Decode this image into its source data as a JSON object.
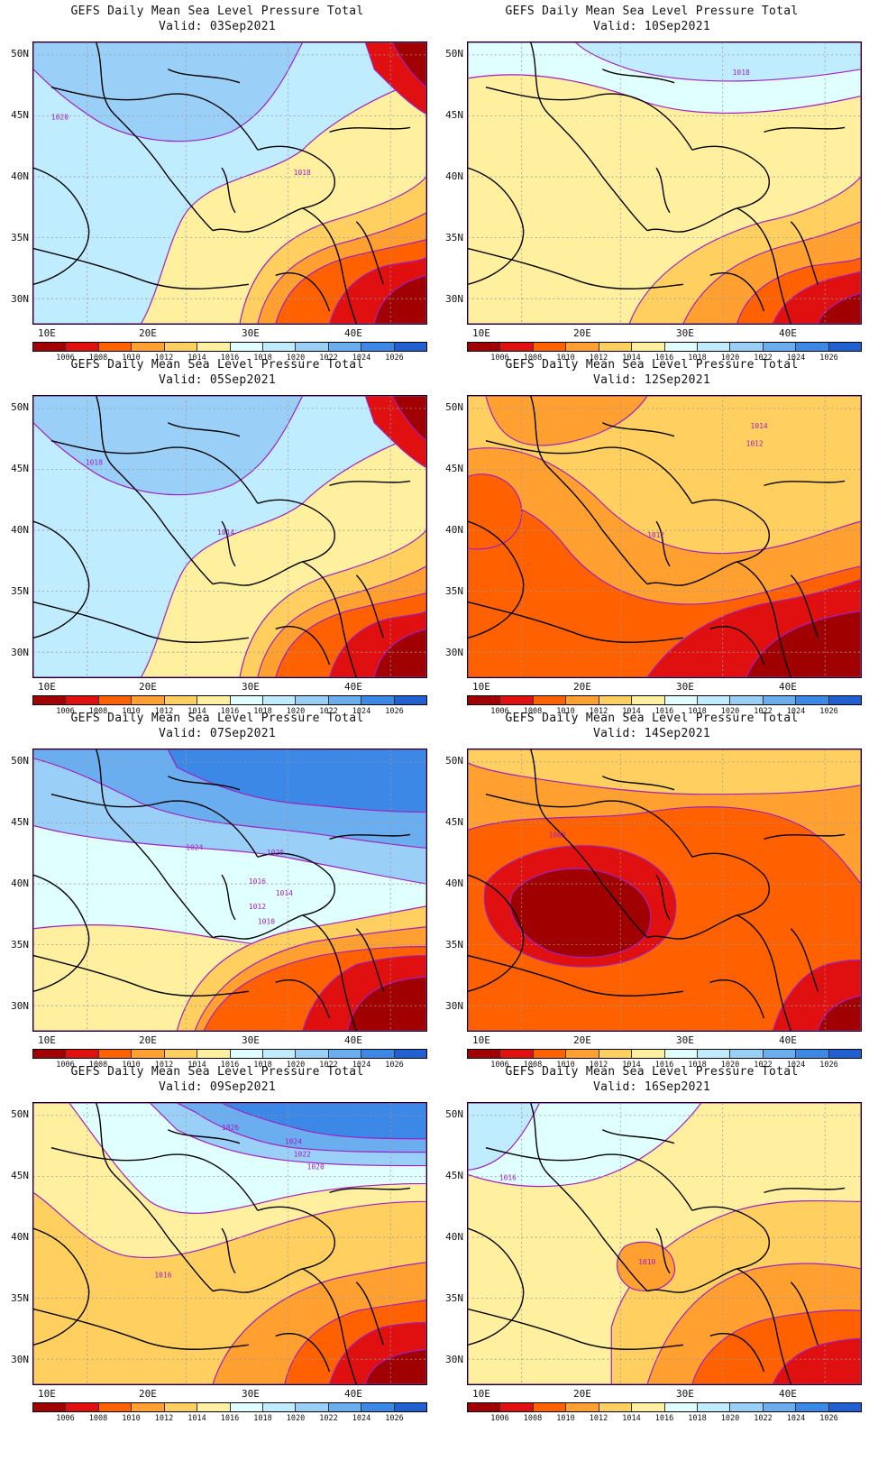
{
  "title": "GEFS Daily Mean Sea Level Pressure Total",
  "valid_prefix": "Valid: ",
  "lat_labels": [
    "50N",
    "45N",
    "40N",
    "35N",
    "30N"
  ],
  "lon_labels": [
    "10E",
    "20E",
    "30E",
    "40E"
  ],
  "colorbar": {
    "labels": [
      "1006",
      "1008",
      "1010",
      "1012",
      "1014",
      "1016",
      "1018",
      "1020",
      "1022",
      "1024",
      "1026"
    ],
    "colors": [
      "#a00000",
      "#e01010",
      "#ff6000",
      "#ffa030",
      "#ffd060",
      "#fff0a0",
      "#e0ffff",
      "#c0ecff",
      "#9ad0f8",
      "#6aaef0",
      "#3c88e6",
      "#2060d0"
    ]
  },
  "panels": [
    {
      "valid": "03Sep2021",
      "contour_labels": [
        "1020",
        "1018"
      ],
      "pattern": "north_blue_se_red"
    },
    {
      "valid": "10Sep2021",
      "contour_labels": [
        "1018"
      ],
      "pattern": "mostly_yellow_se_red"
    },
    {
      "valid": "05Sep2021",
      "contour_labels": [
        "1018",
        "1014"
      ],
      "pattern": "north_blue_se_red"
    },
    {
      "valid": "12Sep2021",
      "contour_labels": [
        "1014",
        "1012",
        "1012"
      ],
      "pattern": "orange_wide"
    },
    {
      "valid": "07Sep2021",
      "contour_labels": [
        "1024",
        "1020",
        "1016",
        "1014",
        "1012",
        "1010"
      ],
      "pattern": "strong_north_blue"
    },
    {
      "valid": "14Sep2021",
      "contour_labels": [
        "1008"
      ],
      "pattern": "deep_low_center"
    },
    {
      "valid": "09Sep2021",
      "contour_labels": [
        "1026",
        "1024",
        "1022",
        "1020",
        "1016"
      ],
      "pattern": "strong_north_blue2"
    },
    {
      "valid": "16Sep2021",
      "contour_labels": [
        "1016",
        "1010"
      ],
      "pattern": "light_mixed"
    }
  ]
}
